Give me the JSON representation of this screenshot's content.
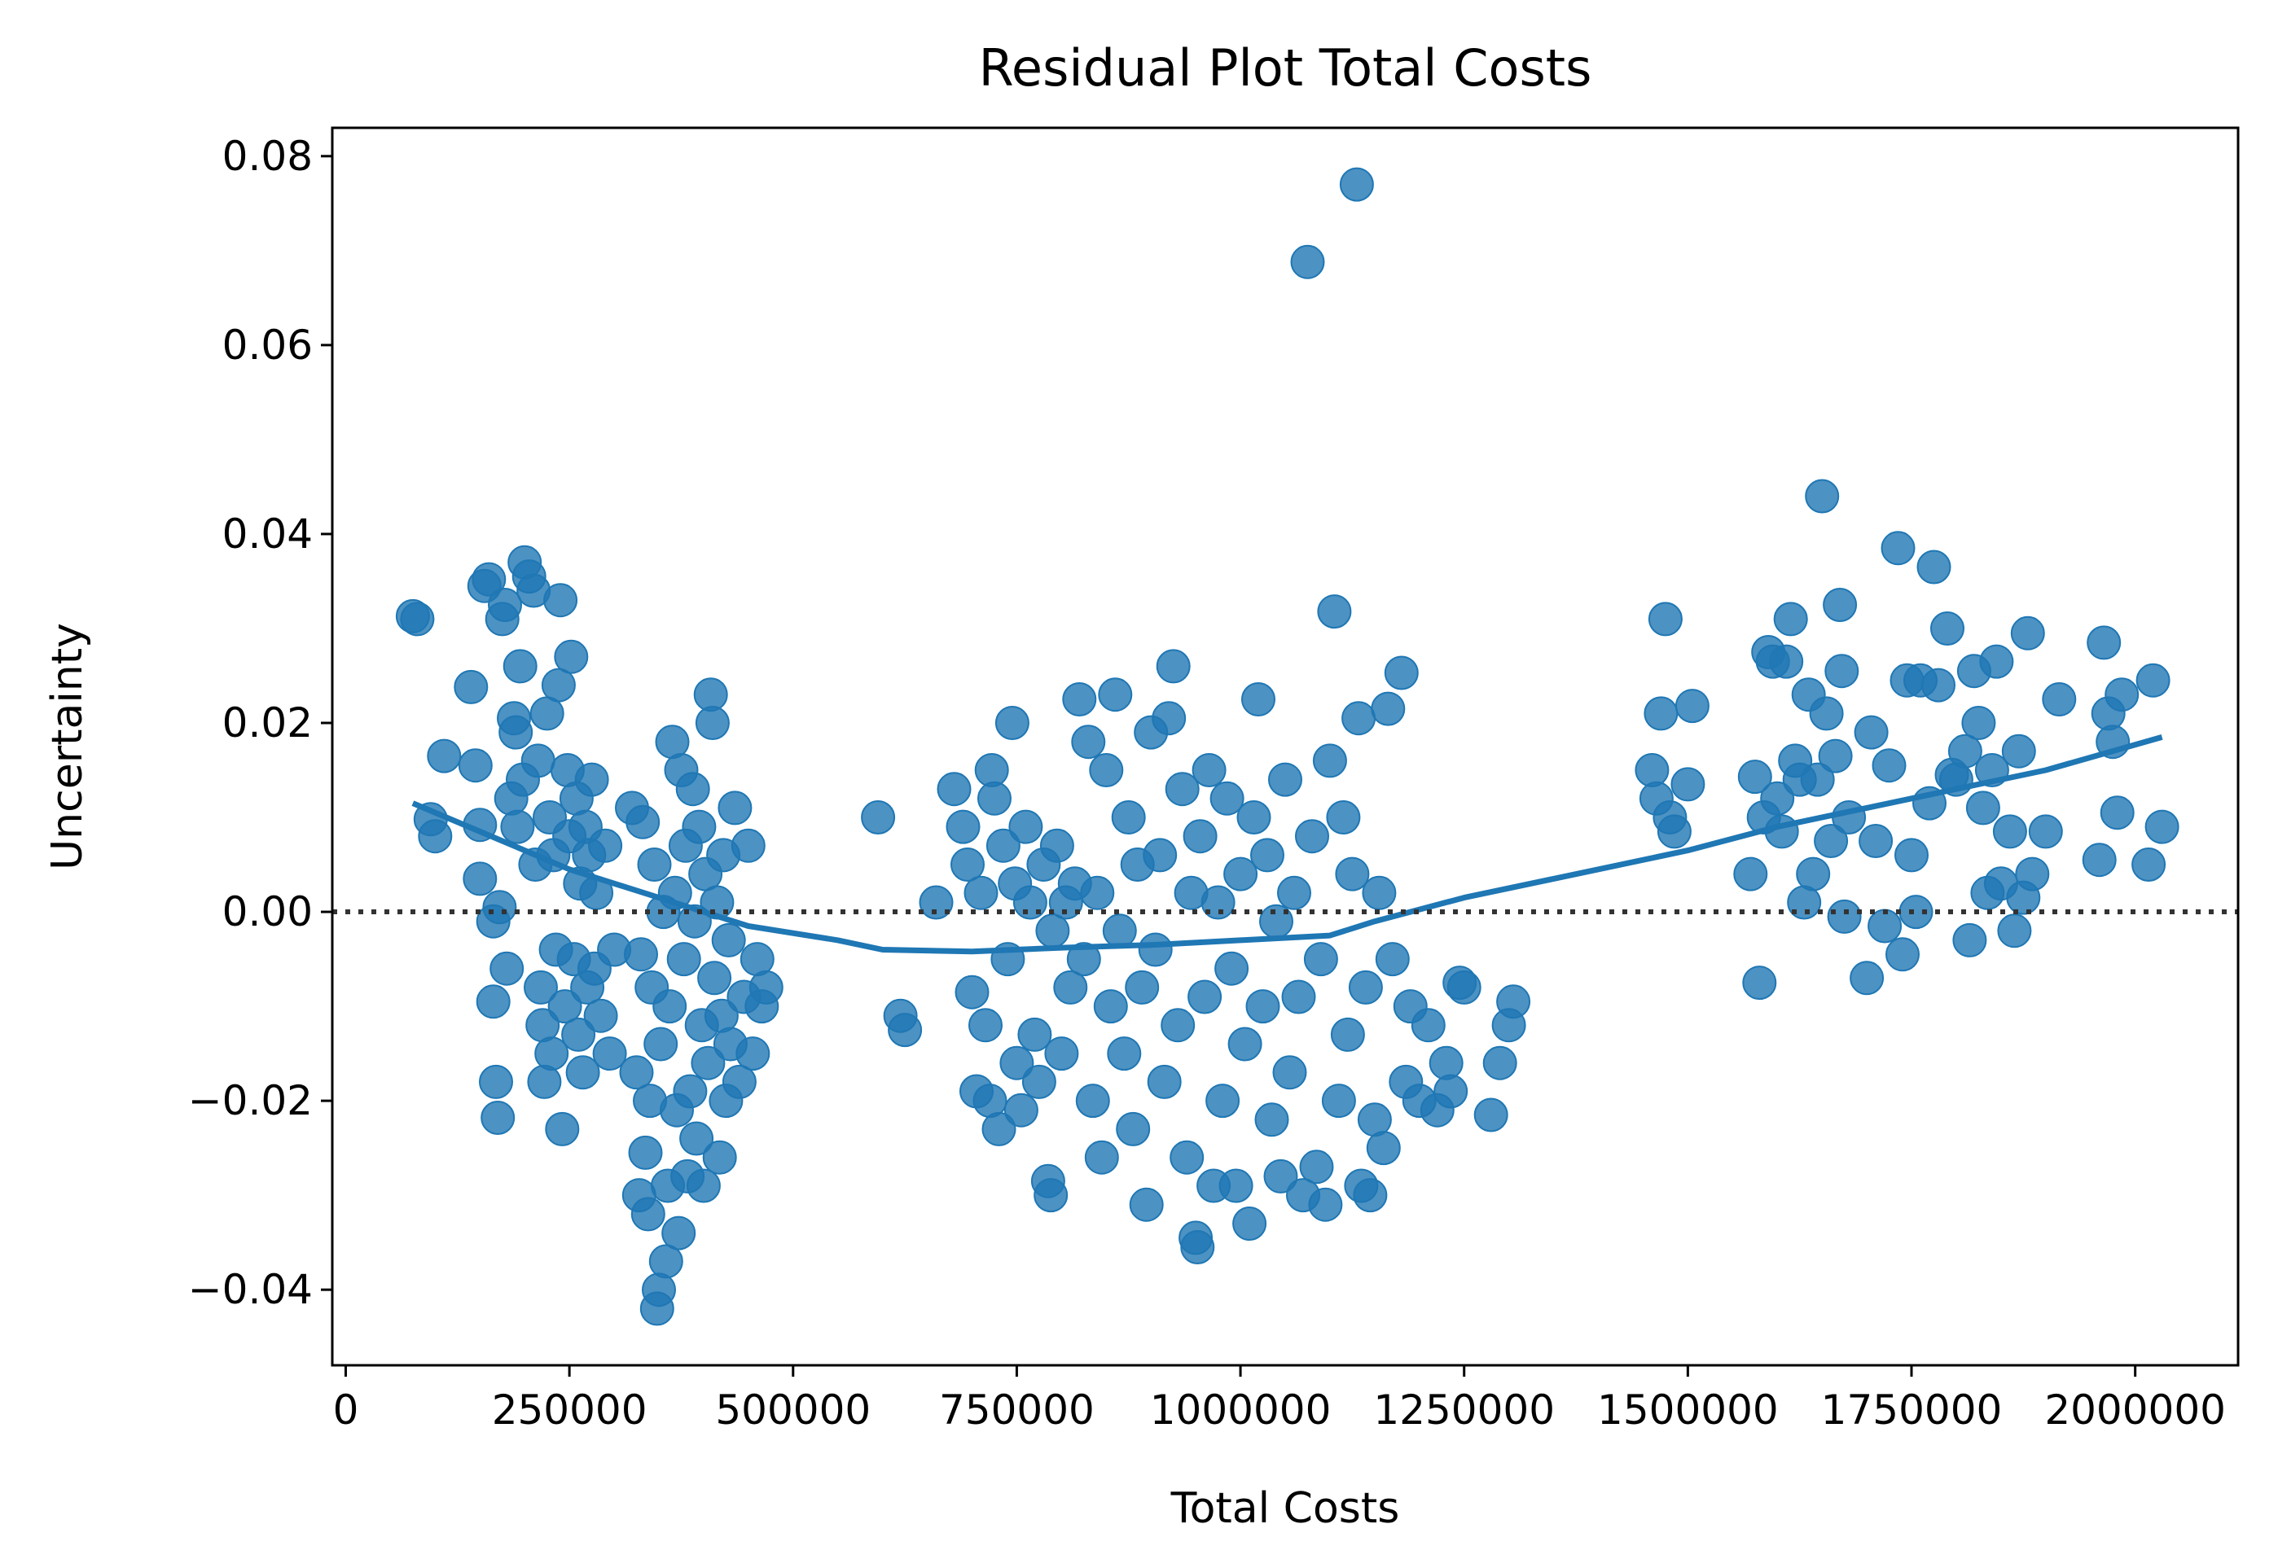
{
  "chart_data": {
    "type": "scatter",
    "title": "Residual Plot Total Costs",
    "xlabel": "Total Costs",
    "ylabel": "Uncertainty",
    "xlim": [
      -15000,
      2115000
    ],
    "ylim": [
      -0.048,
      0.083
    ],
    "x_ticks": [
      {
        "value": 0,
        "label": "0"
      },
      {
        "value": 250000,
        "label": "250000"
      },
      {
        "value": 500000,
        "label": "500000"
      },
      {
        "value": 750000,
        "label": "750000"
      },
      {
        "value": 1000000,
        "label": "1000000"
      },
      {
        "value": 1250000,
        "label": "1250000"
      },
      {
        "value": 1500000,
        "label": "1500000"
      },
      {
        "value": 1750000,
        "label": "1750000"
      },
      {
        "value": 2000000,
        "label": "2000000"
      }
    ],
    "y_ticks": [
      {
        "value": -0.04,
        "label": "−0.04"
      },
      {
        "value": -0.02,
        "label": "−0.02"
      },
      {
        "value": 0.0,
        "label": "0.00"
      },
      {
        "value": 0.02,
        "label": "0.02"
      },
      {
        "value": 0.04,
        "label": "0.04"
      },
      {
        "value": 0.06,
        "label": "0.06"
      },
      {
        "value": 0.08,
        "label": "0.08"
      }
    ],
    "zero_line": {
      "y": 0,
      "style": "dotted",
      "color": "#333333"
    },
    "colors": {
      "points": "#1f77b4",
      "line": "#1f77b4"
    },
    "lowess": [
      [
        75000,
        0.0115
      ],
      [
        150000,
        0.0085
      ],
      [
        250000,
        0.0045
      ],
      [
        350000,
        0.0015
      ],
      [
        450000,
        -0.0015
      ],
      [
        550000,
        -0.003
      ],
      [
        600000,
        -0.004
      ],
      [
        700000,
        -0.0042
      ],
      [
        800000,
        -0.0038
      ],
      [
        900000,
        -0.0035
      ],
      [
        1000000,
        -0.003
      ],
      [
        1100000,
        -0.0025
      ],
      [
        1150000,
        -0.001
      ],
      [
        1250000,
        0.0015
      ],
      [
        1350000,
        0.0035
      ],
      [
        1500000,
        0.0065
      ],
      [
        1600000,
        0.009
      ],
      [
        1700000,
        0.011
      ],
      [
        1800000,
        0.013
      ],
      [
        1900000,
        0.015
      ],
      [
        2030000,
        0.0185
      ]
    ],
    "points": [
      [
        75000,
        0.0313
      ],
      [
        80000,
        0.031
      ],
      [
        95000,
        0.0098
      ],
      [
        100000,
        0.008
      ],
      [
        110000,
        0.0165
      ],
      [
        140000,
        0.0238
      ],
      [
        145000,
        0.0155
      ],
      [
        150000,
        0.0092
      ],
      [
        150000,
        0.0035
      ],
      [
        155000,
        0.0345
      ],
      [
        160000,
        0.0352
      ],
      [
        165000,
        -0.001
      ],
      [
        165000,
        -0.0095
      ],
      [
        168000,
        -0.018
      ],
      [
        170000,
        -0.0218
      ],
      [
        172000,
        0.0005
      ],
      [
        175000,
        0.031
      ],
      [
        178000,
        0.0325
      ],
      [
        180000,
        -0.006
      ],
      [
        185000,
        0.012
      ],
      [
        188000,
        0.0205
      ],
      [
        190000,
        0.019
      ],
      [
        192000,
        0.009
      ],
      [
        195000,
        0.026
      ],
      [
        198000,
        0.014
      ],
      [
        200000,
        0.037
      ],
      [
        205000,
        0.0355
      ],
      [
        210000,
        0.034
      ],
      [
        212000,
        0.005
      ],
      [
        215000,
        0.016
      ],
      [
        218000,
        -0.008
      ],
      [
        220000,
        -0.012
      ],
      [
        222000,
        -0.018
      ],
      [
        225000,
        0.021
      ],
      [
        228000,
        0.01
      ],
      [
        230000,
        -0.015
      ],
      [
        232000,
        0.006
      ],
      [
        235000,
        -0.004
      ],
      [
        238000,
        0.024
      ],
      [
        240000,
        0.033
      ],
      [
        242000,
        -0.023
      ],
      [
        245000,
        -0.01
      ],
      [
        248000,
        0.015
      ],
      [
        250000,
        0.008
      ],
      [
        252000,
        0.027
      ],
      [
        255000,
        -0.005
      ],
      [
        258000,
        0.012
      ],
      [
        260000,
        -0.013
      ],
      [
        262000,
        0.003
      ],
      [
        265000,
        -0.017
      ],
      [
        268000,
        0.009
      ],
      [
        270000,
        -0.008
      ],
      [
        272000,
        0.006
      ],
      [
        275000,
        0.014
      ],
      [
        278000,
        -0.006
      ],
      [
        280000,
        0.002
      ],
      [
        285000,
        -0.011
      ],
      [
        290000,
        0.007
      ],
      [
        295000,
        -0.015
      ],
      [
        300000,
        -0.004
      ],
      [
        320000,
        0.011
      ],
      [
        325000,
        -0.017
      ],
      [
        328000,
        -0.03
      ],
      [
        330000,
        -0.0045
      ],
      [
        332000,
        0.0095
      ],
      [
        335000,
        -0.0255
      ],
      [
        338000,
        -0.032
      ],
      [
        340000,
        -0.02
      ],
      [
        342000,
        -0.008
      ],
      [
        345000,
        0.005
      ],
      [
        348000,
        -0.042
      ],
      [
        350000,
        -0.04
      ],
      [
        352000,
        -0.014
      ],
      [
        355000,
        0.0
      ],
      [
        358000,
        -0.037
      ],
      [
        360000,
        -0.029
      ],
      [
        362000,
        -0.01
      ],
      [
        365000,
        0.018
      ],
      [
        368000,
        0.002
      ],
      [
        370000,
        -0.021
      ],
      [
        372000,
        -0.034
      ],
      [
        375000,
        0.015
      ],
      [
        378000,
        -0.005
      ],
      [
        380000,
        0.007
      ],
      [
        382000,
        -0.028
      ],
      [
        385000,
        -0.019
      ],
      [
        388000,
        0.013
      ],
      [
        390000,
        -0.001
      ],
      [
        392000,
        -0.024
      ],
      [
        395000,
        0.009
      ],
      [
        398000,
        -0.012
      ],
      [
        400000,
        -0.029
      ],
      [
        402000,
        0.004
      ],
      [
        405000,
        -0.016
      ],
      [
        408000,
        0.023
      ],
      [
        410000,
        0.02
      ],
      [
        412000,
        -0.007
      ],
      [
        415000,
        0.001
      ],
      [
        418000,
        -0.026
      ],
      [
        420000,
        -0.011
      ],
      [
        422000,
        0.006
      ],
      [
        425000,
        -0.02
      ],
      [
        428000,
        -0.003
      ],
      [
        430000,
        -0.014
      ],
      [
        435000,
        0.011
      ],
      [
        440000,
        -0.018
      ],
      [
        445000,
        -0.009
      ],
      [
        450000,
        0.007
      ],
      [
        455000,
        -0.015
      ],
      [
        460000,
        -0.005
      ],
      [
        465000,
        -0.01
      ],
      [
        470000,
        -0.008
      ],
      [
        595000,
        0.01
      ],
      [
        620000,
        -0.011
      ],
      [
        625000,
        -0.0125
      ],
      [
        660000,
        0.001
      ],
      [
        680000,
        0.013
      ],
      [
        690000,
        0.009
      ],
      [
        695000,
        0.005
      ],
      [
        700000,
        -0.0085
      ],
      [
        705000,
        -0.019
      ],
      [
        710000,
        0.002
      ],
      [
        715000,
        -0.012
      ],
      [
        720000,
        -0.02
      ],
      [
        722000,
        0.015
      ],
      [
        725000,
        0.012
      ],
      [
        730000,
        -0.023
      ],
      [
        735000,
        0.007
      ],
      [
        740000,
        -0.005
      ],
      [
        745000,
        0.02
      ],
      [
        748000,
        0.003
      ],
      [
        750000,
        -0.016
      ],
      [
        755000,
        -0.021
      ],
      [
        760000,
        0.009
      ],
      [
        765000,
        0.001
      ],
      [
        770000,
        -0.013
      ],
      [
        775000,
        -0.018
      ],
      [
        780000,
        0.005
      ],
      [
        785000,
        -0.0285
      ],
      [
        788000,
        -0.03
      ],
      [
        790000,
        -0.002
      ],
      [
        795000,
        0.007
      ],
      [
        800000,
        -0.015
      ],
      [
        805000,
        0.001
      ],
      [
        810000,
        -0.008
      ],
      [
        815000,
        0.003
      ],
      [
        820000,
        0.0225
      ],
      [
        825000,
        -0.005
      ],
      [
        830000,
        0.018
      ],
      [
        835000,
        -0.02
      ],
      [
        840000,
        0.002
      ],
      [
        845000,
        -0.026
      ],
      [
        850000,
        0.015
      ],
      [
        855000,
        -0.01
      ],
      [
        860000,
        0.023
      ],
      [
        865000,
        -0.002
      ],
      [
        870000,
        -0.015
      ],
      [
        875000,
        0.01
      ],
      [
        880000,
        -0.023
      ],
      [
        885000,
        0.005
      ],
      [
        890000,
        -0.008
      ],
      [
        895000,
        -0.031
      ],
      [
        900000,
        0.019
      ],
      [
        905000,
        -0.004
      ],
      [
        910000,
        0.006
      ],
      [
        915000,
        -0.018
      ],
      [
        920000,
        0.0205
      ],
      [
        925000,
        0.026
      ],
      [
        930000,
        -0.012
      ],
      [
        935000,
        0.013
      ],
      [
        940000,
        -0.026
      ],
      [
        945000,
        0.002
      ],
      [
        950000,
        -0.0345
      ],
      [
        952000,
        -0.0355
      ],
      [
        955000,
        0.008
      ],
      [
        960000,
        -0.009
      ],
      [
        965000,
        0.015
      ],
      [
        970000,
        -0.029
      ],
      [
        975000,
        0.001
      ],
      [
        980000,
        -0.02
      ],
      [
        985000,
        0.012
      ],
      [
        990000,
        -0.006
      ],
      [
        995000,
        -0.029
      ],
      [
        1000000,
        0.004
      ],
      [
        1005000,
        -0.014
      ],
      [
        1010000,
        -0.033
      ],
      [
        1015000,
        0.01
      ],
      [
        1020000,
        0.0225
      ],
      [
        1025000,
        -0.01
      ],
      [
        1030000,
        0.006
      ],
      [
        1035000,
        -0.022
      ],
      [
        1040000,
        -0.001
      ],
      [
        1045000,
        -0.028
      ],
      [
        1050000,
        0.014
      ],
      [
        1055000,
        -0.017
      ],
      [
        1060000,
        0.002
      ],
      [
        1065000,
        -0.009
      ],
      [
        1070000,
        -0.03
      ],
      [
        1075000,
        0.0688
      ],
      [
        1080000,
        0.008
      ],
      [
        1085000,
        -0.027
      ],
      [
        1090000,
        -0.005
      ],
      [
        1095000,
        -0.031
      ],
      [
        1100000,
        0.016
      ],
      [
        1105000,
        0.0318
      ],
      [
        1110000,
        -0.02
      ],
      [
        1115000,
        0.01
      ],
      [
        1120000,
        -0.013
      ],
      [
        1125000,
        0.004
      ],
      [
        1130000,
        0.077
      ],
      [
        1132000,
        0.0205
      ],
      [
        1135000,
        -0.029
      ],
      [
        1140000,
        -0.008
      ],
      [
        1145000,
        -0.03
      ],
      [
        1150000,
        -0.022
      ],
      [
        1155000,
        0.002
      ],
      [
        1160000,
        -0.025
      ],
      [
        1165000,
        0.0215
      ],
      [
        1170000,
        -0.005
      ],
      [
        1180000,
        0.0253
      ],
      [
        1185000,
        -0.018
      ],
      [
        1190000,
        -0.01
      ],
      [
        1200000,
        -0.02
      ],
      [
        1210000,
        -0.012
      ],
      [
        1220000,
        -0.021
      ],
      [
        1230000,
        -0.016
      ],
      [
        1235000,
        -0.019
      ],
      [
        1245000,
        -0.0075
      ],
      [
        1250000,
        -0.008
      ],
      [
        1280000,
        -0.0215
      ],
      [
        1290000,
        -0.016
      ],
      [
        1300000,
        -0.012
      ],
      [
        1305000,
        -0.0095
      ],
      [
        1460000,
        0.015
      ],
      [
        1465000,
        0.012
      ],
      [
        1470000,
        0.021
      ],
      [
        1475000,
        0.031
      ],
      [
        1480000,
        0.01
      ],
      [
        1485000,
        0.0085
      ],
      [
        1500000,
        0.0135
      ],
      [
        1505000,
        0.0218
      ],
      [
        1570000,
        0.004
      ],
      [
        1575000,
        0.0143
      ],
      [
        1580000,
        -0.0075
      ],
      [
        1585000,
        0.01
      ],
      [
        1590000,
        0.0275
      ],
      [
        1595000,
        0.0265
      ],
      [
        1600000,
        0.012
      ],
      [
        1605000,
        0.0085
      ],
      [
        1610000,
        0.0265
      ],
      [
        1615000,
        0.031
      ],
      [
        1620000,
        0.016
      ],
      [
        1625000,
        0.014
      ],
      [
        1630000,
        0.001
      ],
      [
        1635000,
        0.023
      ],
      [
        1640000,
        0.004
      ],
      [
        1645000,
        0.014
      ],
      [
        1650000,
        0.044
      ],
      [
        1655000,
        0.021
      ],
      [
        1660000,
        0.0075
      ],
      [
        1665000,
        0.0165
      ],
      [
        1670000,
        0.0325
      ],
      [
        1672000,
        0.0255
      ],
      [
        1675000,
        -0.0005
      ],
      [
        1680000,
        0.01
      ],
      [
        1700000,
        -0.007
      ],
      [
        1705000,
        0.019
      ],
      [
        1710000,
        0.0075
      ],
      [
        1720000,
        -0.0015
      ],
      [
        1725000,
        0.0155
      ],
      [
        1735000,
        0.0385
      ],
      [
        1740000,
        -0.0045
      ],
      [
        1745000,
        0.0245
      ],
      [
        1750000,
        0.006
      ],
      [
        1755000,
        0.0
      ],
      [
        1760000,
        0.0245
      ],
      [
        1770000,
        0.0115
      ],
      [
        1775000,
        0.0365
      ],
      [
        1780000,
        0.024
      ],
      [
        1790000,
        0.03
      ],
      [
        1795000,
        0.0145
      ],
      [
        1800000,
        0.014
      ],
      [
        1810000,
        0.017
      ],
      [
        1815000,
        -0.003
      ],
      [
        1820000,
        0.0255
      ],
      [
        1825000,
        0.02
      ],
      [
        1830000,
        0.011
      ],
      [
        1835000,
        0.002
      ],
      [
        1840000,
        0.015
      ],
      [
        1845000,
        0.0265
      ],
      [
        1850000,
        0.003
      ],
      [
        1860000,
        0.0085
      ],
      [
        1865000,
        -0.002
      ],
      [
        1870000,
        0.017
      ],
      [
        1875000,
        0.0015
      ],
      [
        1880000,
        0.0295
      ],
      [
        1885000,
        0.004
      ],
      [
        1900000,
        0.0085
      ],
      [
        1915000,
        0.0225
      ],
      [
        1960000,
        0.0055
      ],
      [
        1965000,
        0.0285
      ],
      [
        1970000,
        0.021
      ],
      [
        1975000,
        0.018
      ],
      [
        1980000,
        0.0105
      ],
      [
        1985000,
        0.023
      ],
      [
        2015000,
        0.005
      ],
      [
        2020000,
        0.0245
      ],
      [
        2030000,
        0.009
      ]
    ]
  }
}
